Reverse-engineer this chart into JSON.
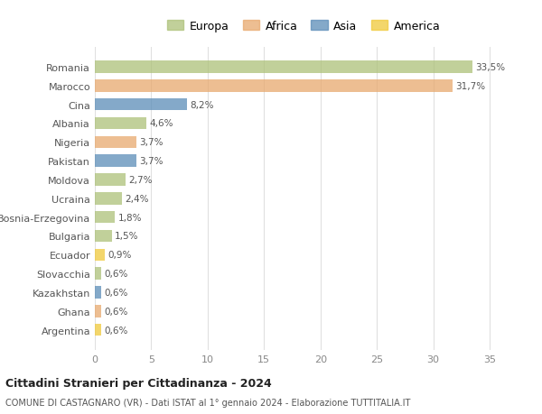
{
  "countries": [
    "Romania",
    "Marocco",
    "Cina",
    "Albania",
    "Nigeria",
    "Pakistan",
    "Moldova",
    "Ucraina",
    "Bosnia-Erzegovina",
    "Bulgaria",
    "Ecuador",
    "Slovacchia",
    "Kazakhstan",
    "Ghana",
    "Argentina"
  ],
  "values": [
    33.5,
    31.7,
    8.2,
    4.6,
    3.7,
    3.7,
    2.7,
    2.4,
    1.8,
    1.5,
    0.9,
    0.6,
    0.6,
    0.6,
    0.6
  ],
  "labels": [
    "33,5%",
    "31,7%",
    "8,2%",
    "4,6%",
    "3,7%",
    "3,7%",
    "2,7%",
    "2,4%",
    "1,8%",
    "1,5%",
    "0,9%",
    "0,6%",
    "0,6%",
    "0,6%",
    "0,6%"
  ],
  "continents": [
    "Europa",
    "Africa",
    "Asia",
    "Europa",
    "Africa",
    "Asia",
    "Europa",
    "Europa",
    "Europa",
    "Europa",
    "America",
    "Europa",
    "Asia",
    "Africa",
    "America"
  ],
  "colors": {
    "Europa": "#adc178",
    "Africa": "#e8a96e",
    "Asia": "#5b8db8",
    "America": "#f0c93a"
  },
  "legend_order": [
    "Europa",
    "Africa",
    "Asia",
    "America"
  ],
  "title": "Cittadini Stranieri per Cittadinanza - 2024",
  "subtitle": "COMUNE DI CASTAGNARO (VR) - Dati ISTAT al 1° gennaio 2024 - Elaborazione TUTTITALIA.IT",
  "xlim": [
    0,
    37
  ],
  "xticks": [
    0,
    5,
    10,
    15,
    20,
    25,
    30,
    35
  ],
  "bg_color": "#ffffff",
  "grid_color": "#e0e0e0",
  "bar_alpha": 0.75
}
